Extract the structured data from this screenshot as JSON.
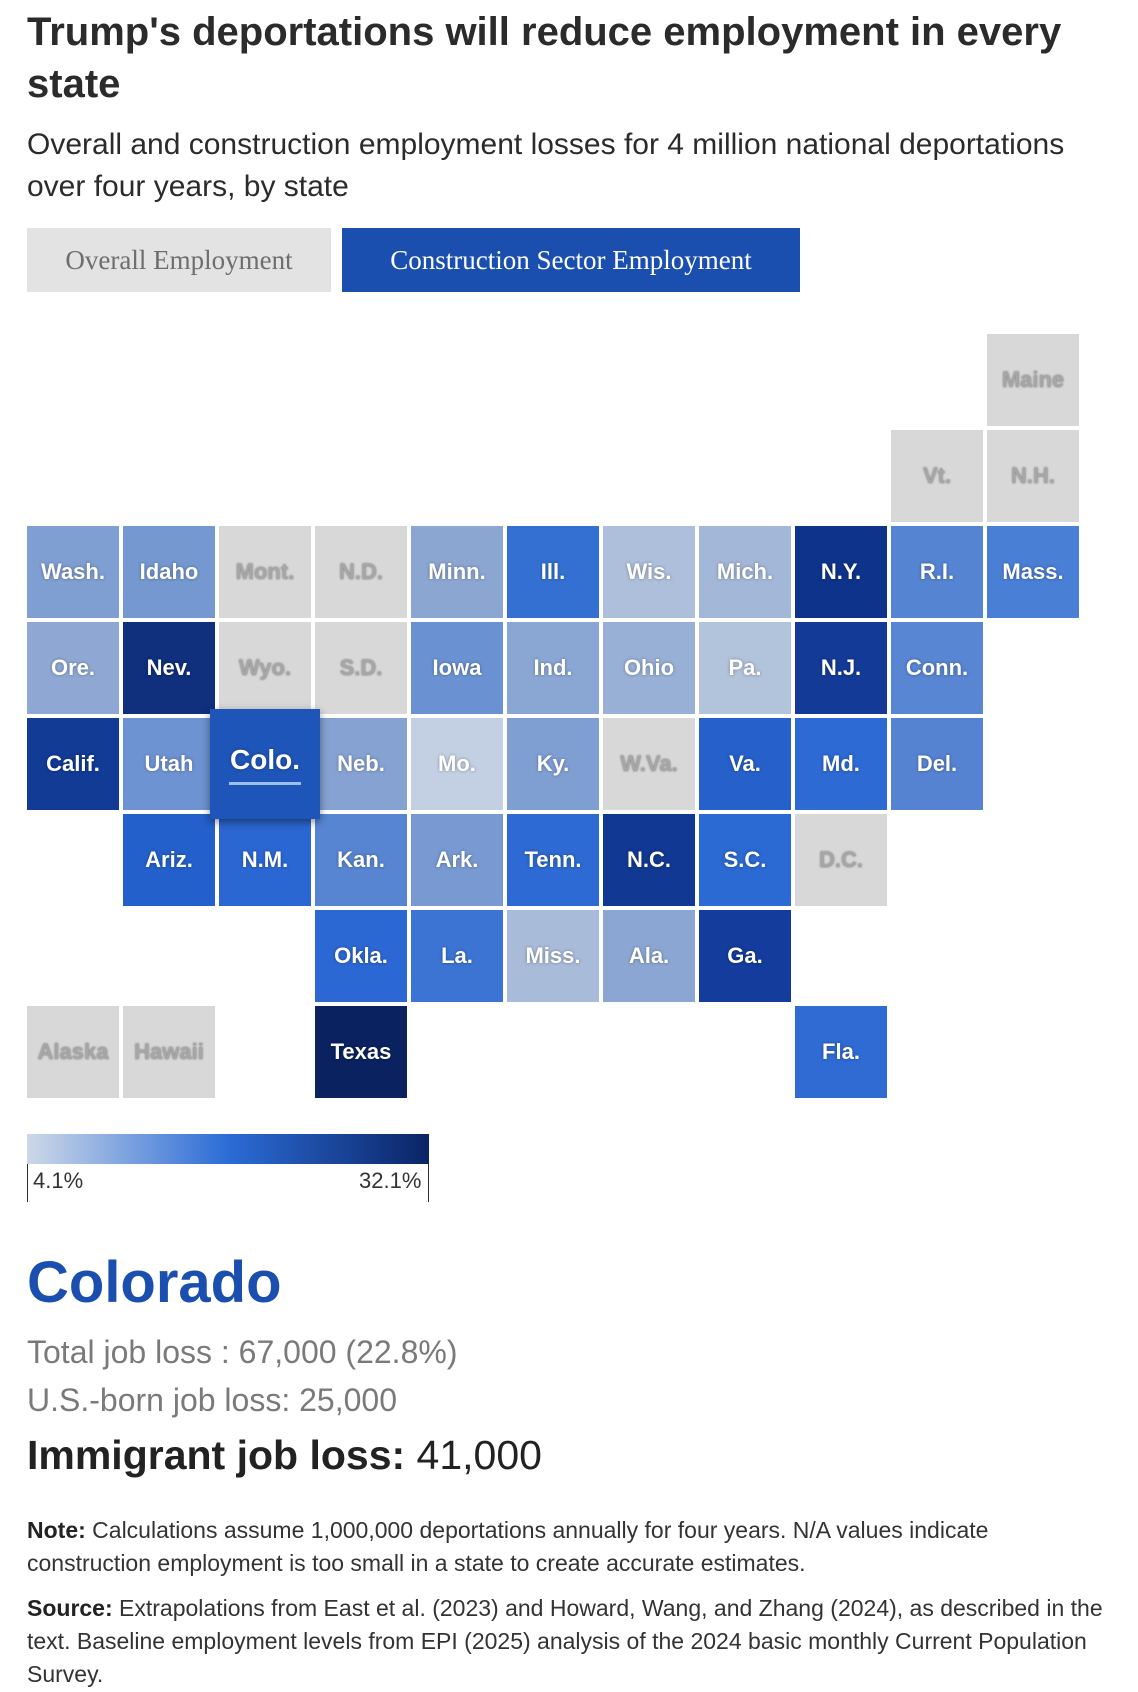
{
  "title": "Trump's deportations will reduce employment in every state",
  "subtitle": "Overall and construction employment losses for 4 million national deportations over four years, by state",
  "tabs": {
    "overall": "Overall Employment",
    "construction": "Construction Sector Employment",
    "active": "construction"
  },
  "colors": {
    "na": "#d8d8d8",
    "scale_low": "#cdd8e8",
    "scale_mid": "#2b6cd6",
    "scale_high": "#0b2466",
    "accent": "#1a4faf"
  },
  "legend": {
    "min_label": "4.1%",
    "max_label": "32.1%",
    "min_value": 4.1,
    "max_value": 32.1
  },
  "map_tiles": [
    {
      "label": "Maine",
      "row": 0,
      "col": 10,
      "color": "#d8d8d8",
      "na": true
    },
    {
      "label": "Vt.",
      "row": 1,
      "col": 9,
      "color": "#d8d8d8",
      "na": true
    },
    {
      "label": "N.H.",
      "row": 1,
      "col": 10,
      "color": "#d8d8d8",
      "na": true
    },
    {
      "label": "Wash.",
      "row": 2,
      "col": 0,
      "color": "#7f9ed2"
    },
    {
      "label": "Idaho",
      "row": 2,
      "col": 1,
      "color": "#7598d1"
    },
    {
      "label": "Mont.",
      "row": 2,
      "col": 2,
      "color": "#d8d8d8",
      "na": true
    },
    {
      "label": "N.D.",
      "row": 2,
      "col": 3,
      "color": "#d8d8d8",
      "na": true
    },
    {
      "label": "Minn.",
      "row": 2,
      "col": 4,
      "color": "#8ca6d2"
    },
    {
      "label": "Ill.",
      "row": 2,
      "col": 5,
      "color": "#3470d2"
    },
    {
      "label": "Wis.",
      "row": 2,
      "col": 6,
      "color": "#adbfdb"
    },
    {
      "label": "Mich.",
      "row": 2,
      "col": 7,
      "color": "#a3b7d8"
    },
    {
      "label": "N.Y.",
      "row": 2,
      "col": 8,
      "color": "#0e338a"
    },
    {
      "label": "R.I.",
      "row": 2,
      "col": 9,
      "color": "#5584d2"
    },
    {
      "label": "Mass.",
      "row": 2,
      "col": 10,
      "color": "#4a7fd6"
    },
    {
      "label": "Ore.",
      "row": 3,
      "col": 0,
      "color": "#8ea8d3"
    },
    {
      "label": "Nev.",
      "row": 3,
      "col": 1,
      "color": "#102f7c"
    },
    {
      "label": "Wyo.",
      "row": 3,
      "col": 2,
      "color": "#d8d8d8",
      "na": true
    },
    {
      "label": "S.D.",
      "row": 3,
      "col": 3,
      "color": "#d8d8d8",
      "na": true
    },
    {
      "label": "Iowa",
      "row": 3,
      "col": 4,
      "color": "#6a92d2"
    },
    {
      "label": "Ind.",
      "row": 3,
      "col": 5,
      "color": "#8aa6d3"
    },
    {
      "label": "Ohio",
      "row": 3,
      "col": 6,
      "color": "#98b0d6"
    },
    {
      "label": "Pa.",
      "row": 3,
      "col": 7,
      "color": "#b2c3dc"
    },
    {
      "label": "N.J.",
      "row": 3,
      "col": 8,
      "color": "#143a98"
    },
    {
      "label": "Conn.",
      "row": 3,
      "col": 9,
      "color": "#5886d2"
    },
    {
      "label": "Calif.",
      "row": 4,
      "col": 0,
      "color": "#123b96"
    },
    {
      "label": "Utah",
      "row": 4,
      "col": 1,
      "color": "#6e93d2"
    },
    {
      "label": "Colo.",
      "row": 4,
      "col": 2,
      "color": "#1e55b8",
      "selected": true
    },
    {
      "label": "Neb.",
      "row": 4,
      "col": 3,
      "color": "#86a2d3"
    },
    {
      "label": "Mo.",
      "row": 4,
      "col": 4,
      "color": "#c3cfe2"
    },
    {
      "label": "Ky.",
      "row": 4,
      "col": 5,
      "color": "#7f9ed2"
    },
    {
      "label": "W.Va.",
      "row": 4,
      "col": 6,
      "color": "#d8d8d8",
      "na": true
    },
    {
      "label": "Va.",
      "row": 4,
      "col": 7,
      "color": "#2660ca"
    },
    {
      "label": "Md.",
      "row": 4,
      "col": 8,
      "color": "#2d6ad3"
    },
    {
      "label": "Del.",
      "row": 4,
      "col": 9,
      "color": "#5583d2"
    },
    {
      "label": "Ariz.",
      "row": 5,
      "col": 1,
      "color": "#2360cc"
    },
    {
      "label": "N.M.",
      "row": 5,
      "col": 2,
      "color": "#2b67d2"
    },
    {
      "label": "Kan.",
      "row": 5,
      "col": 3,
      "color": "#5885d2"
    },
    {
      "label": "Ark.",
      "row": 5,
      "col": 4,
      "color": "#7899d2"
    },
    {
      "label": "Tenn.",
      "row": 5,
      "col": 5,
      "color": "#2e6ad3"
    },
    {
      "label": "N.C.",
      "row": 5,
      "col": 6,
      "color": "#113892"
    },
    {
      "label": "S.C.",
      "row": 5,
      "col": 7,
      "color": "#2b69d3"
    },
    {
      "label": "D.C.",
      "row": 5,
      "col": 8,
      "color": "#d8d8d8",
      "na": true
    },
    {
      "label": "Okla.",
      "row": 6,
      "col": 3,
      "color": "#2c68d3"
    },
    {
      "label": "La.",
      "row": 6,
      "col": 4,
      "color": "#3b74d3"
    },
    {
      "label": "Miss.",
      "row": 6,
      "col": 5,
      "color": "#a8bbd9"
    },
    {
      "label": "Ala.",
      "row": 6,
      "col": 6,
      "color": "#8ca6d3"
    },
    {
      "label": "Ga.",
      "row": 6,
      "col": 7,
      "color": "#143c9c"
    },
    {
      "label": "Alaska",
      "row": 7,
      "col": 0,
      "color": "#d8d8d8",
      "na": true
    },
    {
      "label": "Hawaii",
      "row": 7,
      "col": 1,
      "color": "#d8d8d8",
      "na": true
    },
    {
      "label": "Texas",
      "row": 7,
      "col": 3,
      "color": "#0a2260"
    },
    {
      "label": "Fla.",
      "row": 7,
      "col": 8,
      "color": "#2f6bd3"
    }
  ],
  "detail": {
    "state": "Colorado",
    "total_label": "Total job loss : 67,000 (22.8%)",
    "usborn_label": "U.S.-born job loss: 25,000",
    "immigrant_label": "Immigrant job loss:",
    "immigrant_value": " 41,000"
  },
  "notes": {
    "note_label": "Note:",
    "note_text": " Calculations assume 1,000,000 deportations annually for four years. N/A values indicate construction employment is too small in a state to create accurate estimates.",
    "source_label": "Source:",
    "source_text": " Extrapolations from East et al. (2023) and Howard, Wang, and Zhang (2024), as described in the text. Baseline employment levels from EPI (2025) analysis of the 2024 basic monthly Current Population Survey."
  }
}
